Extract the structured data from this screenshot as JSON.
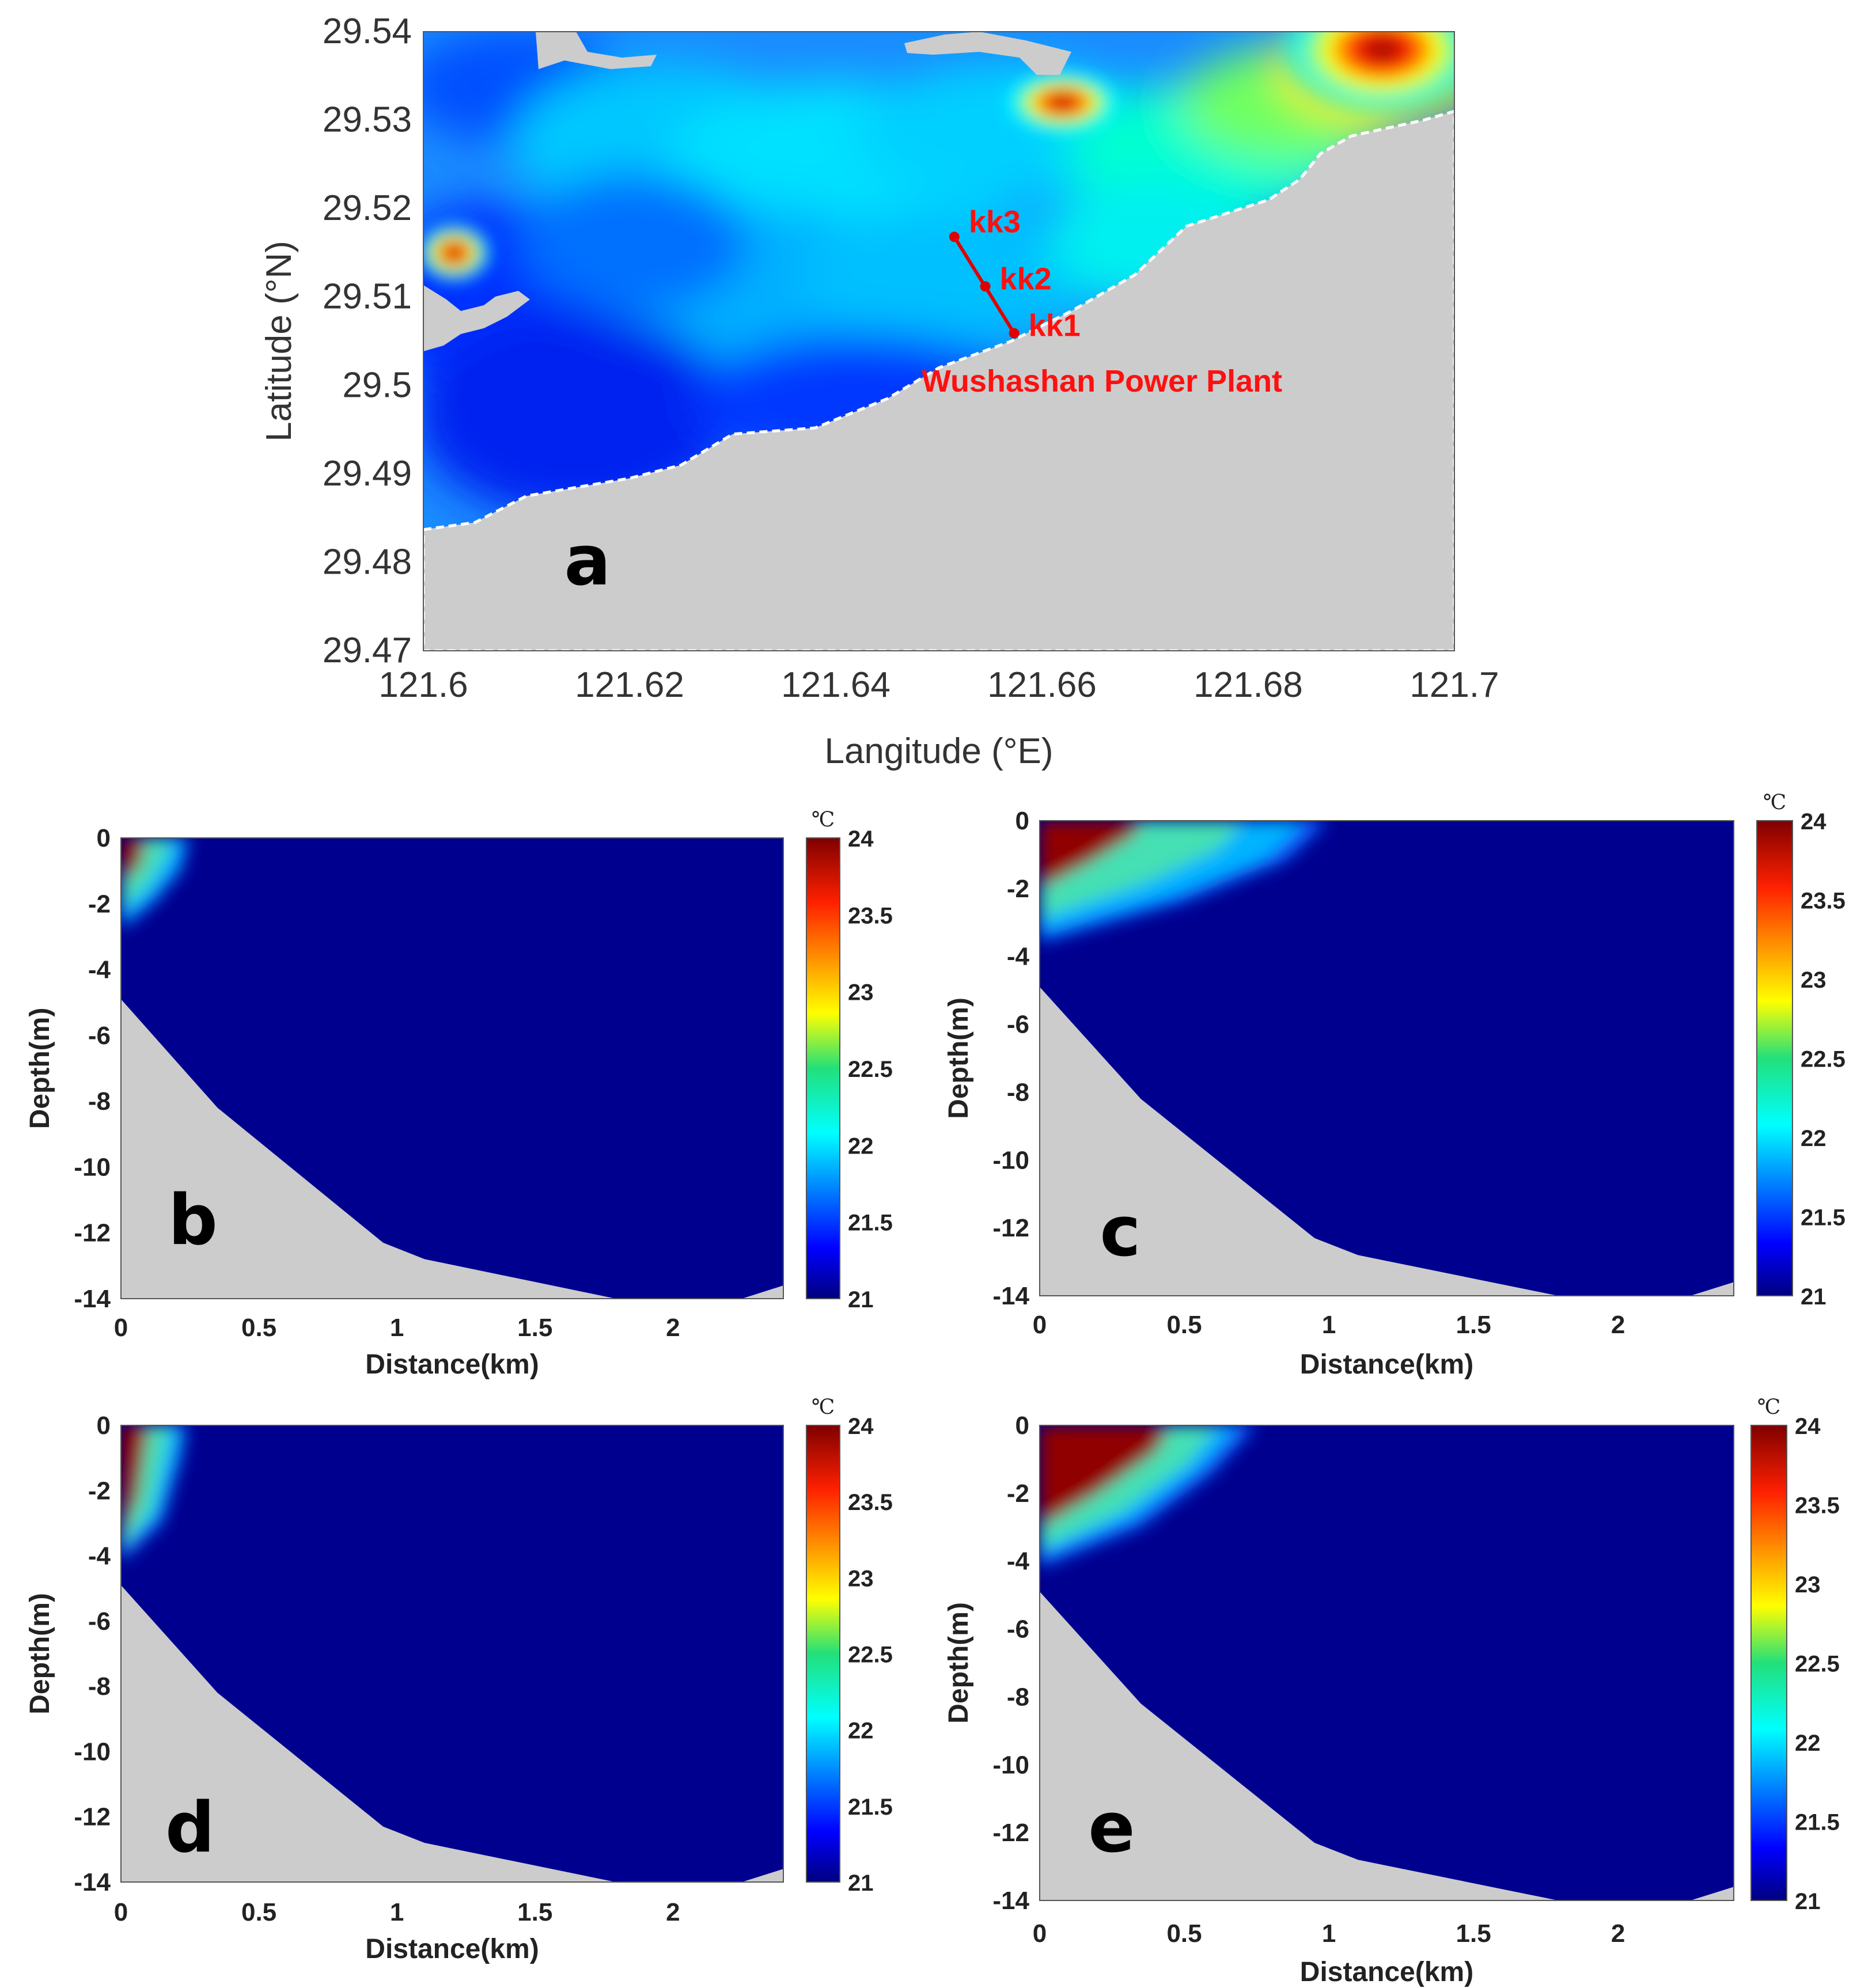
{
  "chart_data": [
    {
      "panel_label": "a",
      "type": "heatmap",
      "title": "",
      "xlabel": "Langitude (°E)",
      "ylabel": "Latitude (°N)",
      "xlim": [
        121.6,
        121.7
      ],
      "ylim": [
        29.47,
        29.54
      ],
      "xticks": [
        121.6,
        121.62,
        121.64,
        121.66,
        121.68,
        121.7
      ],
      "xtick_labels": [
        "121.6",
        "121.62",
        "121.64",
        "121.66",
        "121.68",
        "121.7"
      ],
      "yticks": [
        29.47,
        29.48,
        29.49,
        29.5,
        29.51,
        29.52,
        29.53,
        29.54
      ],
      "ytick_labels": [
        "29.47",
        "29.48",
        "29.49",
        "29.5",
        "29.51",
        "29.52",
        "29.53",
        "29.54"
      ],
      "transect_points": [
        {
          "name": "kk3",
          "lon": 121.6515,
          "lat": 29.5168
        },
        {
          "name": "kk2",
          "lon": 121.6545,
          "lat": 29.5112
        },
        {
          "name": "kk1",
          "lon": 121.6573,
          "lat": 29.5059
        }
      ],
      "annotations": [
        "Wushashan Power Plant"
      ],
      "hot_spots": [
        {
          "lon": 121.693,
          "lat": 29.538,
          "temp": 24.0
        },
        {
          "lon": 121.662,
          "lat": 29.532,
          "temp": 23.8
        },
        {
          "lon": 121.603,
          "lat": 29.515,
          "temp": 23.0
        }
      ]
    },
    {
      "panel_label": "b",
      "type": "heatmap",
      "xlabel": "Distance(km)",
      "ylabel": "Depth(m)",
      "xlim": [
        0,
        2.4
      ],
      "ylim": [
        -14,
        0
      ],
      "xticks": [
        0,
        0.5,
        1,
        1.5,
        2
      ],
      "xtick_labels": [
        "0",
        "0.5",
        "1",
        "1.5",
        "2"
      ],
      "yticks": [
        0,
        -2,
        -4,
        -6,
        -8,
        -10,
        -12,
        -14
      ],
      "ytick_labels": [
        "0",
        "-2",
        "-4",
        "-6",
        "-8",
        "-10",
        "-12",
        "-14"
      ],
      "colorbar": {
        "unit": "℃",
        "min": 21,
        "max": 24,
        "ticks": [
          "21",
          "21.5",
          "22",
          "22.5",
          "23",
          "23.5",
          "24"
        ]
      },
      "bottom_profile": [
        [
          0,
          -4.9
        ],
        [
          0.35,
          -8.2
        ],
        [
          0.95,
          -12.3
        ],
        [
          1.1,
          -12.8
        ],
        [
          1.85,
          -14.1
        ],
        [
          2.1,
          -14.1
        ],
        [
          2.25,
          -14.0
        ],
        [
          2.4,
          -13.6
        ]
      ],
      "plume_edge_24": [
        [
          0,
          -1.4
        ],
        [
          0.07,
          -0.8
        ],
        [
          0.09,
          0
        ]
      ],
      "plume_edge_21": [
        [
          0,
          -2.8
        ],
        [
          0.12,
          -2.0
        ],
        [
          0.22,
          -1.0
        ],
        [
          0.25,
          0
        ]
      ]
    },
    {
      "panel_label": "c",
      "type": "heatmap",
      "xlabel": "Distance(km)",
      "ylabel": "Depth(m)",
      "xlim": [
        0,
        2.4
      ],
      "ylim": [
        -14,
        0
      ],
      "xticks": [
        0,
        0.5,
        1,
        1.5,
        2
      ],
      "xtick_labels": [
        "0",
        "0.5",
        "1",
        "1.5",
        "2"
      ],
      "yticks": [
        0,
        -2,
        -4,
        -6,
        -8,
        -10,
        -12,
        -14
      ],
      "ytick_labels": [
        "0",
        "-2",
        "-4",
        "-6",
        "-8",
        "-10",
        "-12",
        "-14"
      ],
      "colorbar": {
        "unit": "℃",
        "min": 21,
        "max": 24,
        "ticks": [
          "21",
          "21.5",
          "22",
          "22.5",
          "23",
          "23.5",
          "24"
        ]
      },
      "bottom_profile": [
        [
          0,
          -4.9
        ],
        [
          0.35,
          -8.2
        ],
        [
          0.95,
          -12.3
        ],
        [
          1.1,
          -12.8
        ],
        [
          1.85,
          -14.1
        ],
        [
          2.1,
          -14.1
        ],
        [
          2.25,
          -14.0
        ],
        [
          2.4,
          -13.6
        ]
      ],
      "plume_edge_24": [
        [
          0,
          -2.0
        ],
        [
          0.18,
          -1.2
        ],
        [
          0.33,
          -0.4
        ],
        [
          0.35,
          0
        ]
      ],
      "plume_edge_21": [
        [
          0,
          -3.6
        ],
        [
          0.5,
          -2.4
        ],
        [
          0.85,
          -1.2
        ],
        [
          1.0,
          0
        ]
      ]
    },
    {
      "panel_label": "d",
      "type": "heatmap",
      "xlabel": "Distance(km)",
      "ylabel": "Depth(m)",
      "xlim": [
        0,
        2.4
      ],
      "ylim": [
        -14,
        0
      ],
      "xticks": [
        0,
        0.5,
        1,
        1.5,
        2
      ],
      "xtick_labels": [
        "0",
        "0.5",
        "1",
        "1.5",
        "2"
      ],
      "yticks": [
        0,
        -2,
        -4,
        -6,
        -8,
        -10,
        -12,
        -14
      ],
      "ytick_labels": [
        "0",
        "-2",
        "-4",
        "-6",
        "-8",
        "-10",
        "-12",
        "-14"
      ],
      "colorbar": {
        "unit": "℃",
        "min": 21,
        "max": 24,
        "ticks": [
          "21",
          "21.5",
          "22",
          "22.5",
          "23",
          "23.5",
          "24"
        ]
      },
      "bottom_profile": [
        [
          0,
          -4.9
        ],
        [
          0.35,
          -8.2
        ],
        [
          0.95,
          -12.3
        ],
        [
          1.1,
          -12.8
        ],
        [
          1.85,
          -14.1
        ],
        [
          2.1,
          -14.1
        ],
        [
          2.25,
          -14.0
        ],
        [
          2.4,
          -13.6
        ]
      ],
      "plume_edge_24": [
        [
          0,
          -3.4
        ],
        [
          0.06,
          -2.2
        ],
        [
          0.1,
          0
        ]
      ],
      "plume_edge_21": [
        [
          0,
          -4.2
        ],
        [
          0.15,
          -3.0
        ],
        [
          0.22,
          -1.0
        ],
        [
          0.24,
          0
        ]
      ]
    },
    {
      "panel_label": "e",
      "type": "heatmap",
      "xlabel": "Distance(km)",
      "ylabel": "Depth(m)",
      "xlim": [
        0,
        2.4
      ],
      "ylim": [
        -14,
        0
      ],
      "xticks": [
        0,
        0.5,
        1,
        1.5,
        2
      ],
      "xtick_labels": [
        "0",
        "0.5",
        "1",
        "1.5",
        "2"
      ],
      "yticks": [
        0,
        -2,
        -4,
        -6,
        -8,
        -10,
        -12,
        -14
      ],
      "ytick_labels": [
        "0",
        "-2",
        "-4",
        "-6",
        "-8",
        "-10",
        "-12",
        "-14"
      ],
      "colorbar": {
        "unit": "℃",
        "min": 21,
        "max": 24,
        "ticks": [
          "21",
          "21.5",
          "22",
          "22.5",
          "23",
          "23.5",
          "24"
        ]
      },
      "bottom_profile": [
        [
          0,
          -4.9
        ],
        [
          0.35,
          -8.2
        ],
        [
          0.95,
          -12.3
        ],
        [
          1.1,
          -12.8
        ],
        [
          1.85,
          -14.1
        ],
        [
          2.1,
          -14.1
        ],
        [
          2.25,
          -14.0
        ],
        [
          2.4,
          -13.6
        ]
      ],
      "plume_edge_24": [
        [
          0,
          -3.0
        ],
        [
          0.2,
          -2.0
        ],
        [
          0.4,
          -0.8
        ],
        [
          0.45,
          0
        ]
      ],
      "plume_edge_21": [
        [
          0,
          -4.2
        ],
        [
          0.35,
          -3.0
        ],
        [
          0.6,
          -1.4
        ],
        [
          0.75,
          0
        ]
      ]
    }
  ]
}
